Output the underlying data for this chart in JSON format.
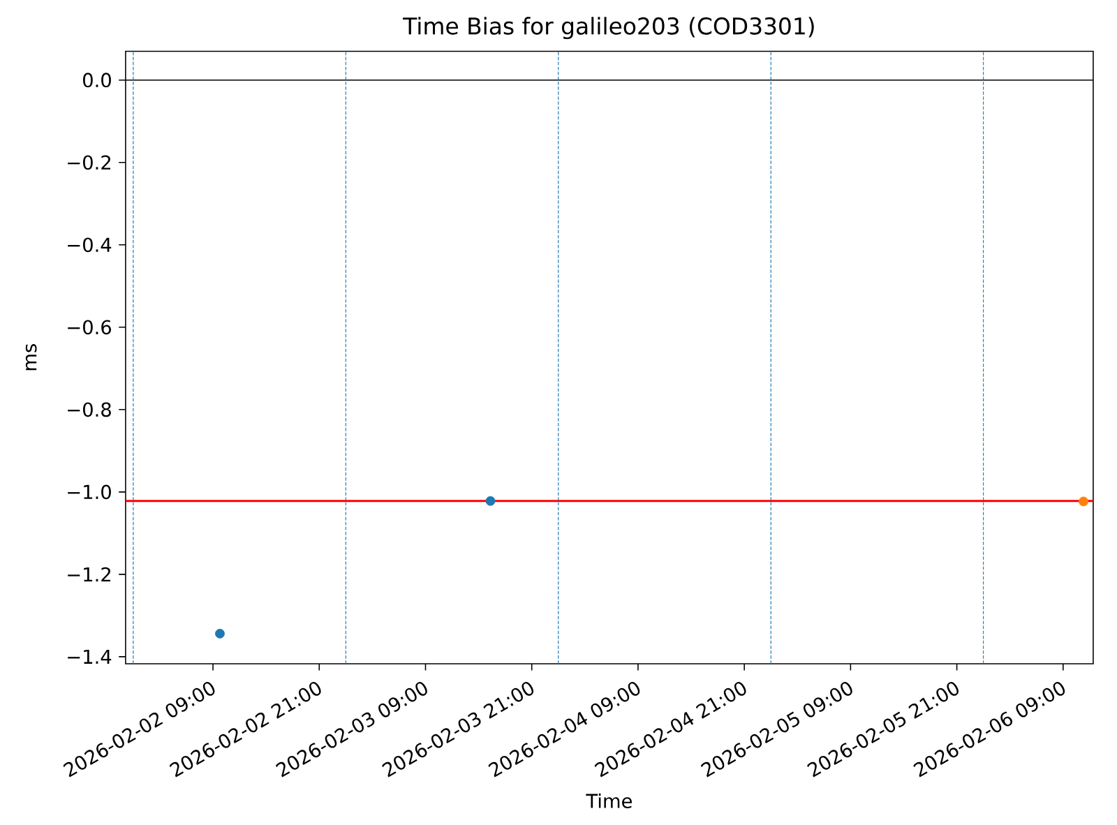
{
  "chart_data": {
    "type": "scatter",
    "title": "Time Bias for galileo203 (COD3301)",
    "xlabel": "Time",
    "ylabel": "ms",
    "series": [
      {
        "color": "#1f77b4",
        "x": [
          "2026-02-02T09:47",
          "2026-02-03T16:20"
        ],
        "values": [
          -1.344,
          -1.022
        ]
      },
      {
        "color": "#ff7f0e",
        "x": [
          "2026-02-06T11:18"
        ],
        "values": [
          -1.023
        ]
      }
    ],
    "xlim": [
      "2026-02-01T23:08",
      "2026-02-06T12:24"
    ],
    "xticks": [
      {
        "value": "2026-02-02T09:00",
        "label": "2026-02-02 09:00"
      },
      {
        "value": "2026-02-02T21:00",
        "label": "2026-02-02 21:00"
      },
      {
        "value": "2026-02-03T09:00",
        "label": "2026-02-03 09:00"
      },
      {
        "value": "2026-02-03T21:00",
        "label": "2026-02-03 21:00"
      },
      {
        "value": "2026-02-04T09:00",
        "label": "2026-02-04 09:00"
      },
      {
        "value": "2026-02-04T21:00",
        "label": "2026-02-04 21:00"
      },
      {
        "value": "2026-02-05T09:00",
        "label": "2026-02-05 09:00"
      },
      {
        "value": "2026-02-05T21:00",
        "label": "2026-02-05 21:00"
      },
      {
        "value": "2026-02-06T09:00",
        "label": "2026-02-06 09:00"
      }
    ],
    "ylim": [
      -1.417,
      0.07
    ],
    "yticks": [
      {
        "value": 0.0,
        "label": "0.0"
      },
      {
        "value": -0.2,
        "label": "−0.2"
      },
      {
        "value": -0.4,
        "label": "−0.4"
      },
      {
        "value": -0.6,
        "label": "−0.6"
      },
      {
        "value": -0.8,
        "label": "−0.8"
      },
      {
        "value": -1.0,
        "label": "−1.0"
      },
      {
        "value": -1.2,
        "label": "−1.2"
      },
      {
        "value": -1.4,
        "label": "−1.4"
      }
    ],
    "ref_lines": [
      {
        "axis": "y",
        "value": 0,
        "color": "#000000",
        "line_style": "solid"
      },
      {
        "axis": "y",
        "value": -1.022,
        "color": "#ff0000",
        "line_style": "solid"
      },
      {
        "axis": "x",
        "value": "2026-02-02T00:00",
        "color": "#1f77b4",
        "line_style": "dashed"
      },
      {
        "axis": "x",
        "value": "2026-02-03T00:00",
        "color": "#1f77b4",
        "line_style": "dashed"
      },
      {
        "axis": "x",
        "value": "2026-02-04T00:00",
        "color": "#1f77b4",
        "line_style": "dashed"
      },
      {
        "axis": "x",
        "value": "2026-02-05T00:00",
        "color": "#1f77b4",
        "line_style": "dashed"
      },
      {
        "axis": "x",
        "value": "2026-02-06T00:00",
        "color": "#1f77b4",
        "line_style": "dashed"
      }
    ],
    "grid": false,
    "marker": "circle"
  }
}
